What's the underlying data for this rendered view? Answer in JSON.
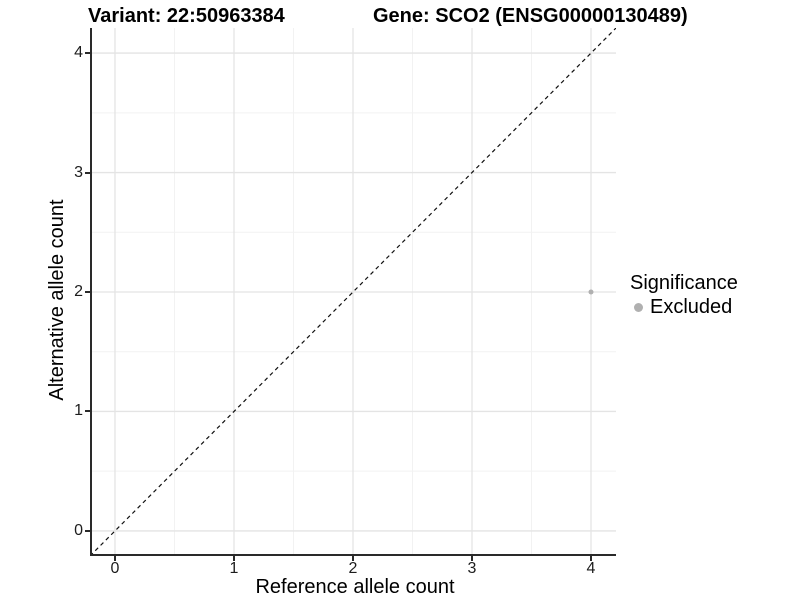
{
  "chart_data": {
    "type": "scatter",
    "titles": {
      "left": "Variant: 22:50963384",
      "right": "Gene: SCO2 (ENSG00000130489)"
    },
    "xlabel": "Reference allele count",
    "ylabel": "Alternative allele count",
    "xlim": [
      -0.21,
      4.21
    ],
    "ylim": [
      -0.21,
      4.21
    ],
    "x_ticks": [
      0,
      1,
      2,
      3,
      4
    ],
    "y_ticks": [
      0,
      1,
      2,
      3,
      4
    ],
    "x_minor_ticks": [
      0.5,
      1.5,
      2.5,
      3.5
    ],
    "y_minor_ticks": [
      0.5,
      1.5,
      2.5,
      3.5
    ],
    "grid": true,
    "reference_line": {
      "type": "identity",
      "from": [
        -0.21,
        -0.21
      ],
      "to": [
        4.21,
        4.21
      ],
      "style": "dashed",
      "color": "#111111"
    },
    "points": [
      {
        "x": 4,
        "y": 2,
        "significance": "Excluded"
      }
    ],
    "point_radius": 2.5,
    "legend": {
      "title": "Significance",
      "position": "right",
      "items": [
        {
          "label": "Excluded",
          "color": "#b0b0b0"
        }
      ]
    },
    "colors": {
      "point": "#b0b0b0",
      "grid_major": "#e4e4e4",
      "grid_minor": "#f2f2f2",
      "axis_line": "#2a2a2a",
      "background": "#ffffff"
    }
  }
}
